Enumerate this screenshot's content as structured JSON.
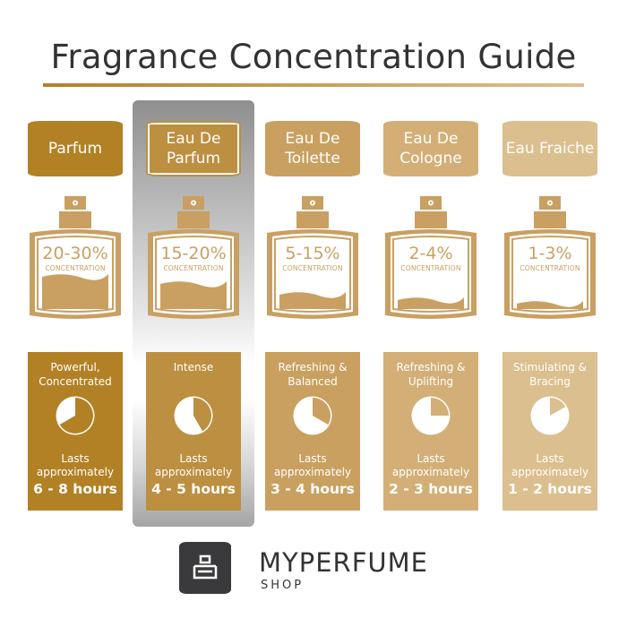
{
  "title": "Fragrance Concentration Guide",
  "columns": [
    {
      "name": "Parfum",
      "concentration": "20-30%",
      "concentration_label": "CONCENTRATION",
      "description": "Powerful, Concentrated",
      "lasts": "Lasts approximately",
      "hours": "6 - 8 hours",
      "pie_fraction": 0.6667,
      "liquid_level": 0.36,
      "color": "#b38125",
      "highlighted": false
    },
    {
      "name": "Eau De Parfum",
      "concentration": "15-20%",
      "concentration_label": "CONCENTRATION",
      "description": "Intense",
      "lasts": "Lasts approximately",
      "hours": "4 - 5 hours",
      "pie_fraction": 0.4167,
      "liquid_level": 0.28,
      "color": "#bd8f40",
      "highlighted": true
    },
    {
      "name": "Eau De Toilette",
      "concentration": "5-15%",
      "concentration_label": "CONCENTRATION",
      "description": "Refreshing & Balanced",
      "lasts": "Lasts approximately",
      "hours": "3 - 4 hours",
      "pie_fraction": 0.3333,
      "liquid_level": 0.16,
      "color": "#c9a060",
      "highlighted": false
    },
    {
      "name": "Eau De Cologne",
      "concentration": "2-4%",
      "concentration_label": "CONCENTRATION",
      "description": "Refreshing & Uplifting",
      "lasts": "Lasts approximately",
      "hours": "2 - 3 hours",
      "pie_fraction": 0.25,
      "liquid_level": 0.1,
      "color": "#d3af77",
      "highlighted": false
    },
    {
      "name": "Eau Fraiche",
      "concentration": "1-3%",
      "concentration_label": "CONCENTRATION",
      "description": "Stimulating & Bracing",
      "lasts": "Lasts approximately",
      "hours": "1 - 2 hours",
      "pie_fraction": 0.1667,
      "liquid_level": 0.06,
      "color": "#dcbf8e",
      "highlighted": false
    }
  ],
  "bottle_color": "#c9a062",
  "brand": {
    "name": "MYPERFUME",
    "sub": "SHOP"
  }
}
